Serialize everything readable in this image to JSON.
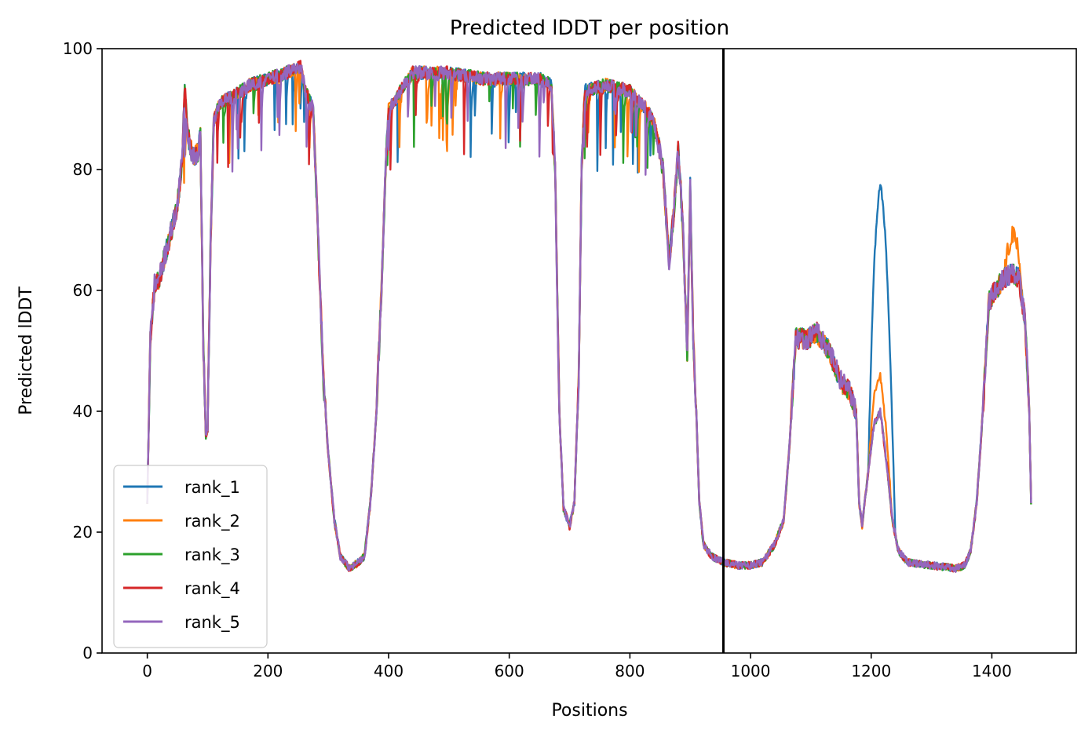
{
  "chart_data": {
    "type": "line",
    "title": "Predicted lDDT per position",
    "xlabel": "Positions",
    "ylabel": "Predicted lDDT",
    "xlim": [
      -75,
      1540
    ],
    "ylim": [
      0,
      100
    ],
    "xticks": [
      0,
      200,
      400,
      600,
      800,
      1000,
      1200,
      1400
    ],
    "yticks": [
      0,
      20,
      40,
      60,
      80,
      100
    ],
    "grid": false,
    "legend_position": "lower-left",
    "vline": {
      "x": 955,
      "color": "#000000"
    },
    "colors": [
      "#1f77b4",
      "#ff7f0e",
      "#2ca02c",
      "#d62728",
      "#9467bd"
    ],
    "base_profile": [
      [
        0,
        25
      ],
      [
        5,
        52
      ],
      [
        12,
        61
      ],
      [
        20,
        62
      ],
      [
        30,
        66
      ],
      [
        40,
        70
      ],
      [
        50,
        74
      ],
      [
        58,
        82
      ],
      [
        62,
        94
      ],
      [
        67,
        86
      ],
      [
        75,
        82
      ],
      [
        85,
        83
      ],
      [
        88,
        86
      ],
      [
        93,
        50
      ],
      [
        97,
        36
      ],
      [
        100,
        37
      ],
      [
        105,
        68
      ],
      [
        110,
        88
      ],
      [
        120,
        91
      ],
      [
        140,
        92
      ],
      [
        170,
        94
      ],
      [
        200,
        95
      ],
      [
        230,
        96
      ],
      [
        255,
        97
      ],
      [
        262,
        93
      ],
      [
        275,
        90
      ],
      [
        282,
        72
      ],
      [
        292,
        45
      ],
      [
        300,
        33
      ],
      [
        310,
        22
      ],
      [
        320,
        16
      ],
      [
        335,
        14
      ],
      [
        350,
        15
      ],
      [
        360,
        16
      ],
      [
        370,
        25
      ],
      [
        380,
        40
      ],
      [
        390,
        65
      ],
      [
        395,
        80
      ],
      [
        400,
        90
      ],
      [
        420,
        93
      ],
      [
        440,
        96
      ],
      [
        500,
        96
      ],
      [
        560,
        95
      ],
      [
        620,
        95
      ],
      [
        650,
        95
      ],
      [
        670,
        94
      ],
      [
        676,
        80
      ],
      [
        683,
        40
      ],
      [
        690,
        24
      ],
      [
        700,
        21
      ],
      [
        708,
        25
      ],
      [
        715,
        45
      ],
      [
        720,
        80
      ],
      [
        725,
        93
      ],
      [
        760,
        94
      ],
      [
        800,
        93
      ],
      [
        820,
        91
      ],
      [
        840,
        88
      ],
      [
        855,
        80
      ],
      [
        865,
        65
      ],
      [
        872,
        72
      ],
      [
        880,
        83
      ],
      [
        888,
        70
      ],
      [
        895,
        50
      ],
      [
        900,
        77
      ],
      [
        905,
        52
      ],
      [
        910,
        40
      ],
      [
        915,
        25
      ],
      [
        922,
        18
      ],
      [
        935,
        16
      ],
      [
        955,
        15
      ],
      [
        980,
        14.5
      ],
      [
        1000,
        14.5
      ],
      [
        1020,
        15
      ],
      [
        1040,
        18
      ],
      [
        1055,
        22
      ],
      [
        1065,
        35
      ],
      [
        1075,
        52
      ],
      [
        1095,
        52
      ],
      [
        1110,
        53
      ],
      [
        1130,
        50
      ],
      [
        1150,
        45
      ],
      [
        1165,
        43
      ],
      [
        1175,
        40
      ],
      [
        1180,
        25
      ],
      [
        1185,
        21
      ],
      [
        1195,
        30
      ],
      [
        1205,
        38
      ],
      [
        1215,
        40
      ],
      [
        1225,
        32
      ],
      [
        1235,
        22
      ],
      [
        1245,
        17
      ],
      [
        1260,
        15
      ],
      [
        1300,
        14.5
      ],
      [
        1340,
        14
      ],
      [
        1355,
        14.5
      ],
      [
        1365,
        17
      ],
      [
        1375,
        25
      ],
      [
        1385,
        40
      ],
      [
        1395,
        58
      ],
      [
        1405,
        60
      ],
      [
        1420,
        62
      ],
      [
        1435,
        63
      ],
      [
        1445,
        62
      ],
      [
        1455,
        55
      ],
      [
        1462,
        40
      ],
      [
        1465,
        25
      ]
    ],
    "series": [
      {
        "name": "rank_1",
        "seed": 11,
        "bumps": [
          [
            1195,
            1240,
            38
          ]
        ]
      },
      {
        "name": "rank_2",
        "seed": 23,
        "bumps": [
          [
            1195,
            1235,
            6
          ],
          [
            1420,
            1450,
            6
          ]
        ]
      },
      {
        "name": "rank_3",
        "seed": 37,
        "bumps": []
      },
      {
        "name": "rank_4",
        "seed": 53,
        "bumps": []
      },
      {
        "name": "rank_5",
        "seed": 71,
        "bumps": []
      }
    ]
  }
}
